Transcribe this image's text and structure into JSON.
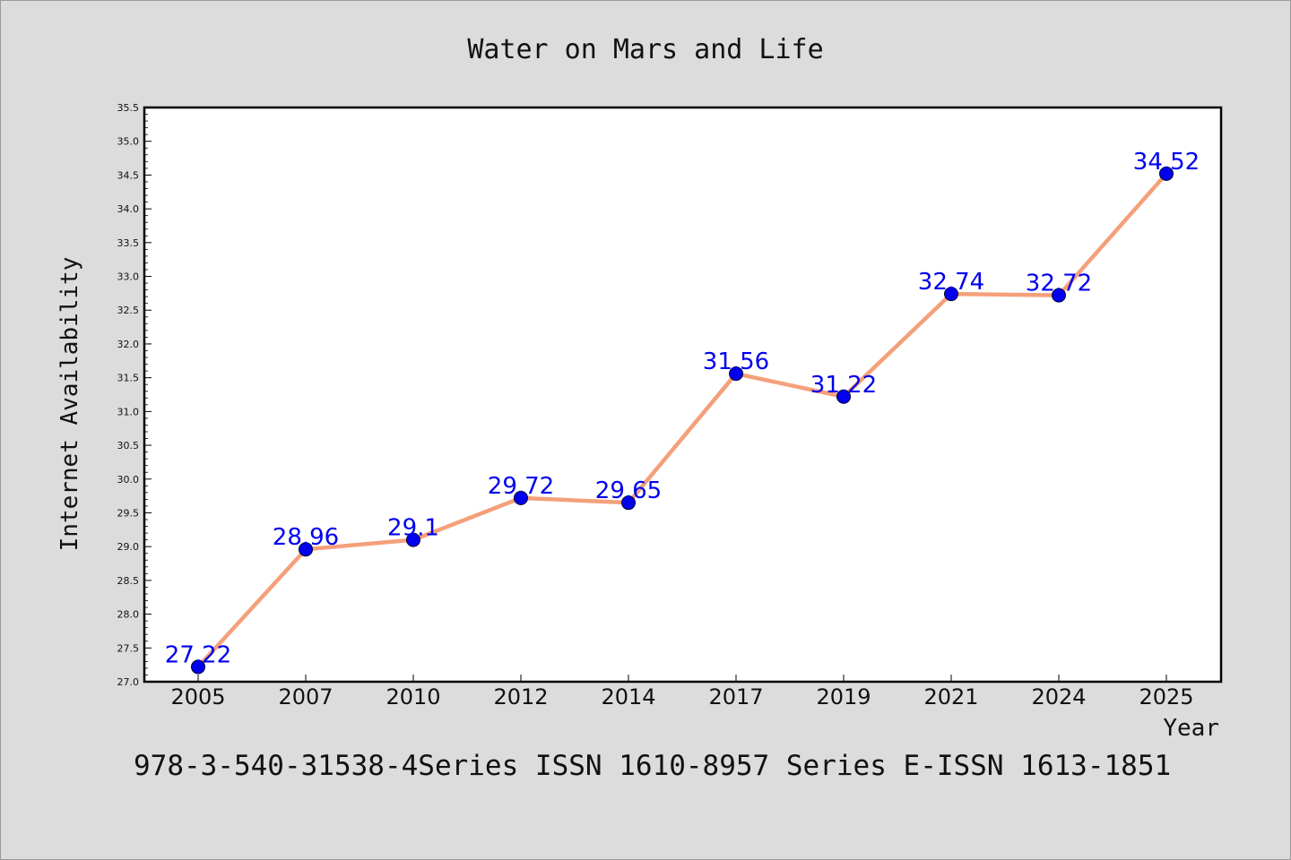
{
  "chart_data": {
    "type": "line",
    "title": "Water on Mars and Life",
    "xlabel": "Year",
    "ylabel": "Internet Availability",
    "categories": [
      "2005",
      "2007",
      "2010",
      "2012",
      "2014",
      "2017",
      "2019",
      "2021",
      "2024",
      "2025"
    ],
    "series": [
      {
        "values": [
          27.22,
          28.96,
          29.1,
          29.72,
          29.65,
          31.56,
          31.22,
          32.74,
          32.72,
          34.52
        ],
        "labels": [
          "27.22",
          "28.96",
          "29.1",
          "29.72",
          "29.65",
          "31.56",
          "31.22",
          "32.74",
          "32.72",
          "34.52"
        ],
        "line_color": "#f4a07a",
        "marker_color": "#0000ee",
        "label_color": "#0000ee"
      }
    ],
    "ylim": [
      27.0,
      35.5
    ],
    "yticks": [
      "27.0",
      "27.5",
      "28.0",
      "28.5",
      "29.0",
      "29.5",
      "30.0",
      "30.5",
      "31.0",
      "31.5",
      "32.0",
      "32.5",
      "33.0",
      "33.5",
      "34.0",
      "34.5",
      "35.0",
      "35.5"
    ],
    "grid": false,
    "legend": "none"
  },
  "footer": "978-3-540-31538-4Series ISSN 1610-8957 Series E-ISSN 1613-1851"
}
